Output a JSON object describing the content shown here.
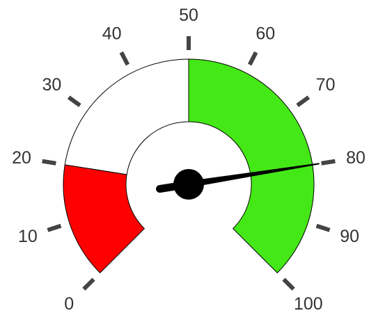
{
  "chart_data": {
    "type": "gauge",
    "min": 0,
    "max": 100,
    "value": 80,
    "ticks": [
      "0",
      "10",
      "20",
      "30",
      "40",
      "50",
      "60",
      "70",
      "80",
      "90",
      "100"
    ],
    "bands": [
      {
        "from": 0,
        "to": 20,
        "color": "#ff0000"
      },
      {
        "from": 20,
        "to": 50,
        "color": "#ffffff"
      },
      {
        "from": 50,
        "to": 100,
        "color": "#44e817"
      }
    ],
    "colors": {
      "tick": "#444444",
      "tick_label": "#333333",
      "needle": "#000000",
      "hub": "#000000",
      "band_stroke": "#000000"
    }
  }
}
